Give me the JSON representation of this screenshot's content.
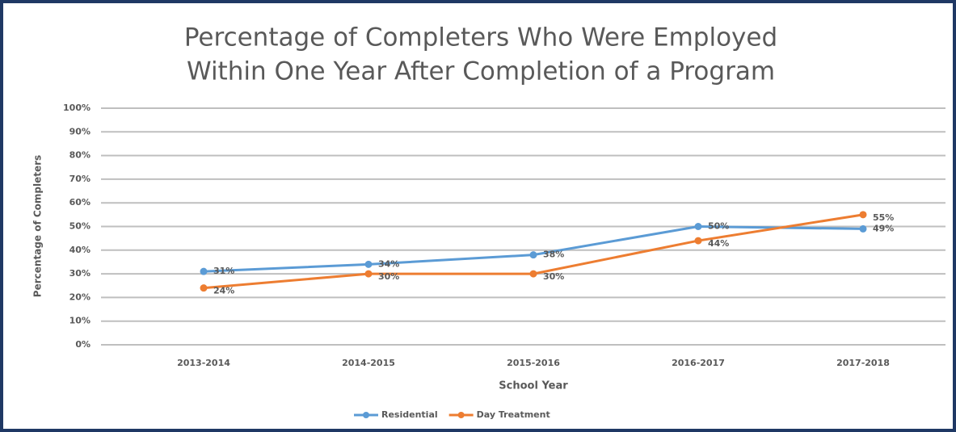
{
  "chart_data": {
    "type": "line",
    "title": [
      "Percentage of Completers Who Were Employed",
      "Within One Year After Completion of a Program"
    ],
    "x_label": "School Year",
    "y_label": "Percentage of Completers",
    "categories": [
      "2013-2014",
      "2014-2015",
      "2015-2016",
      "2016-2017",
      "2017-2018"
    ],
    "series": [
      {
        "name": "Residential",
        "color": "#5b9bd5",
        "values": [
          31,
          34,
          38,
          50,
          49
        ],
        "value_labels": [
          "31%",
          "34%",
          "38%",
          "50%",
          "49%"
        ]
      },
      {
        "name": "Day Treatment",
        "color": "#ed7d31",
        "values": [
          24,
          30,
          30,
          44,
          55
        ],
        "value_labels": [
          "24%",
          "30%",
          "30%",
          "44%",
          "55%"
        ]
      }
    ],
    "ylim": [
      0,
      100
    ],
    "yticks": [
      {
        "value": 0,
        "label": "0%"
      },
      {
        "value": 10,
        "label": "10%"
      },
      {
        "value": 20,
        "label": "20%"
      },
      {
        "value": 30,
        "label": "30%"
      },
      {
        "value": 40,
        "label": "40%"
      },
      {
        "value": 50,
        "label": "50%"
      },
      {
        "value": 60,
        "label": "60%"
      },
      {
        "value": 70,
        "label": "70%"
      },
      {
        "value": 80,
        "label": "80%"
      },
      {
        "value": 90,
        "label": "90%"
      },
      {
        "value": 100,
        "label": "100%"
      }
    ],
    "grid": true,
    "legend": "bottom"
  }
}
